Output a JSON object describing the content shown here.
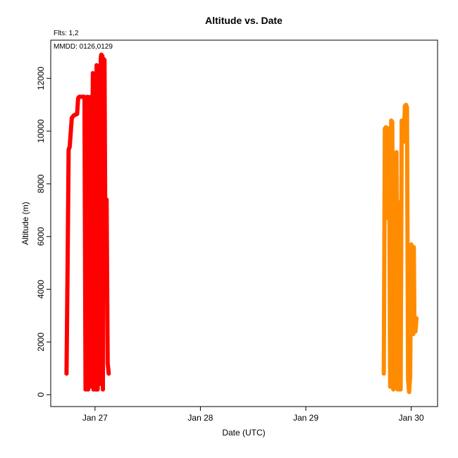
{
  "chart_data": {
    "type": "line",
    "title": "Altitude  vs. Date",
    "xlabel": "Date (UTC)",
    "ylabel": "Altitude (m)",
    "annotations": [
      "Flts: 1,2",
      "MMDD: 0126,0129"
    ],
    "x_ticks": [
      "Jan 27",
      "Jan 28",
      "Jan 29",
      "Jan 30"
    ],
    "x_tick_values": [
      27,
      28,
      29,
      30
    ],
    "y_ticks": [
      "0",
      "2000",
      "4000",
      "6000",
      "8000",
      "10000",
      "12000"
    ],
    "y_tick_values": [
      0,
      2000,
      4000,
      6000,
      8000,
      10000,
      12000
    ],
    "xlim": [
      26.58,
      30.25
    ],
    "ylim": [
      -450,
      13450
    ],
    "grid": false,
    "colors": {
      "flight1": "#ff0000",
      "flight2": "#ff8c00"
    },
    "series": [
      {
        "x": [
          26.73,
          26.74,
          26.75,
          26.76,
          26.78,
          26.79,
          26.8,
          26.83,
          26.84,
          26.85,
          26.86,
          26.87,
          26.89,
          26.9,
          26.91,
          26.92,
          26.93,
          26.935,
          26.94,
          26.945,
          26.95,
          26.96,
          26.97,
          26.975,
          26.98,
          26.985,
          26.99,
          27.0,
          27.01,
          27.015,
          27.02,
          27.025,
          27.03,
          27.04,
          27.05,
          27.055,
          27.06,
          27.07,
          27.075,
          27.08,
          27.09,
          27.1,
          27.11,
          27.12,
          27.13
        ],
        "y": [
          800,
          4800,
          9300,
          9400,
          10500,
          10550,
          10600,
          10650,
          11250,
          11300,
          11300,
          11300,
          11300,
          11300,
          200,
          11250,
          11300,
          200,
          11250,
          300,
          9000,
          11300,
          300,
          9500,
          12200,
          200,
          7000,
          12000,
          200,
          12500,
          12400,
          200,
          9700,
          400,
          9700,
          12800,
          12900,
          12850,
          200,
          12750,
          12700,
          4000,
          7400,
          1200,
          800
        ]
      },
      {
        "x": [
          29.74,
          29.75,
          29.755,
          29.76,
          29.77,
          29.78,
          29.785,
          29.79,
          29.8,
          29.81,
          29.82,
          29.825,
          29.83,
          29.84,
          29.85,
          29.86,
          29.87,
          29.88,
          29.89,
          29.895,
          29.9,
          29.91,
          29.92,
          29.93,
          29.94,
          29.95,
          29.96,
          29.97,
          29.98,
          29.99,
          30.0,
          30.01,
          30.02,
          30.025,
          30.03,
          30.04,
          30.05
        ],
        "y": [
          800,
          10100,
          6800,
          10150,
          10100,
          6700,
          10100,
          10050,
          300,
          10400,
          10350,
          6800,
          200,
          9100,
          300,
          9200,
          200,
          7300,
          200,
          7100,
          200,
          10400,
          10300,
          9600,
          10950,
          11000,
          10900,
          600,
          100,
          700,
          5700,
          5600,
          2300,
          5600,
          2800,
          2400,
          2900
        ]
      }
    ]
  }
}
